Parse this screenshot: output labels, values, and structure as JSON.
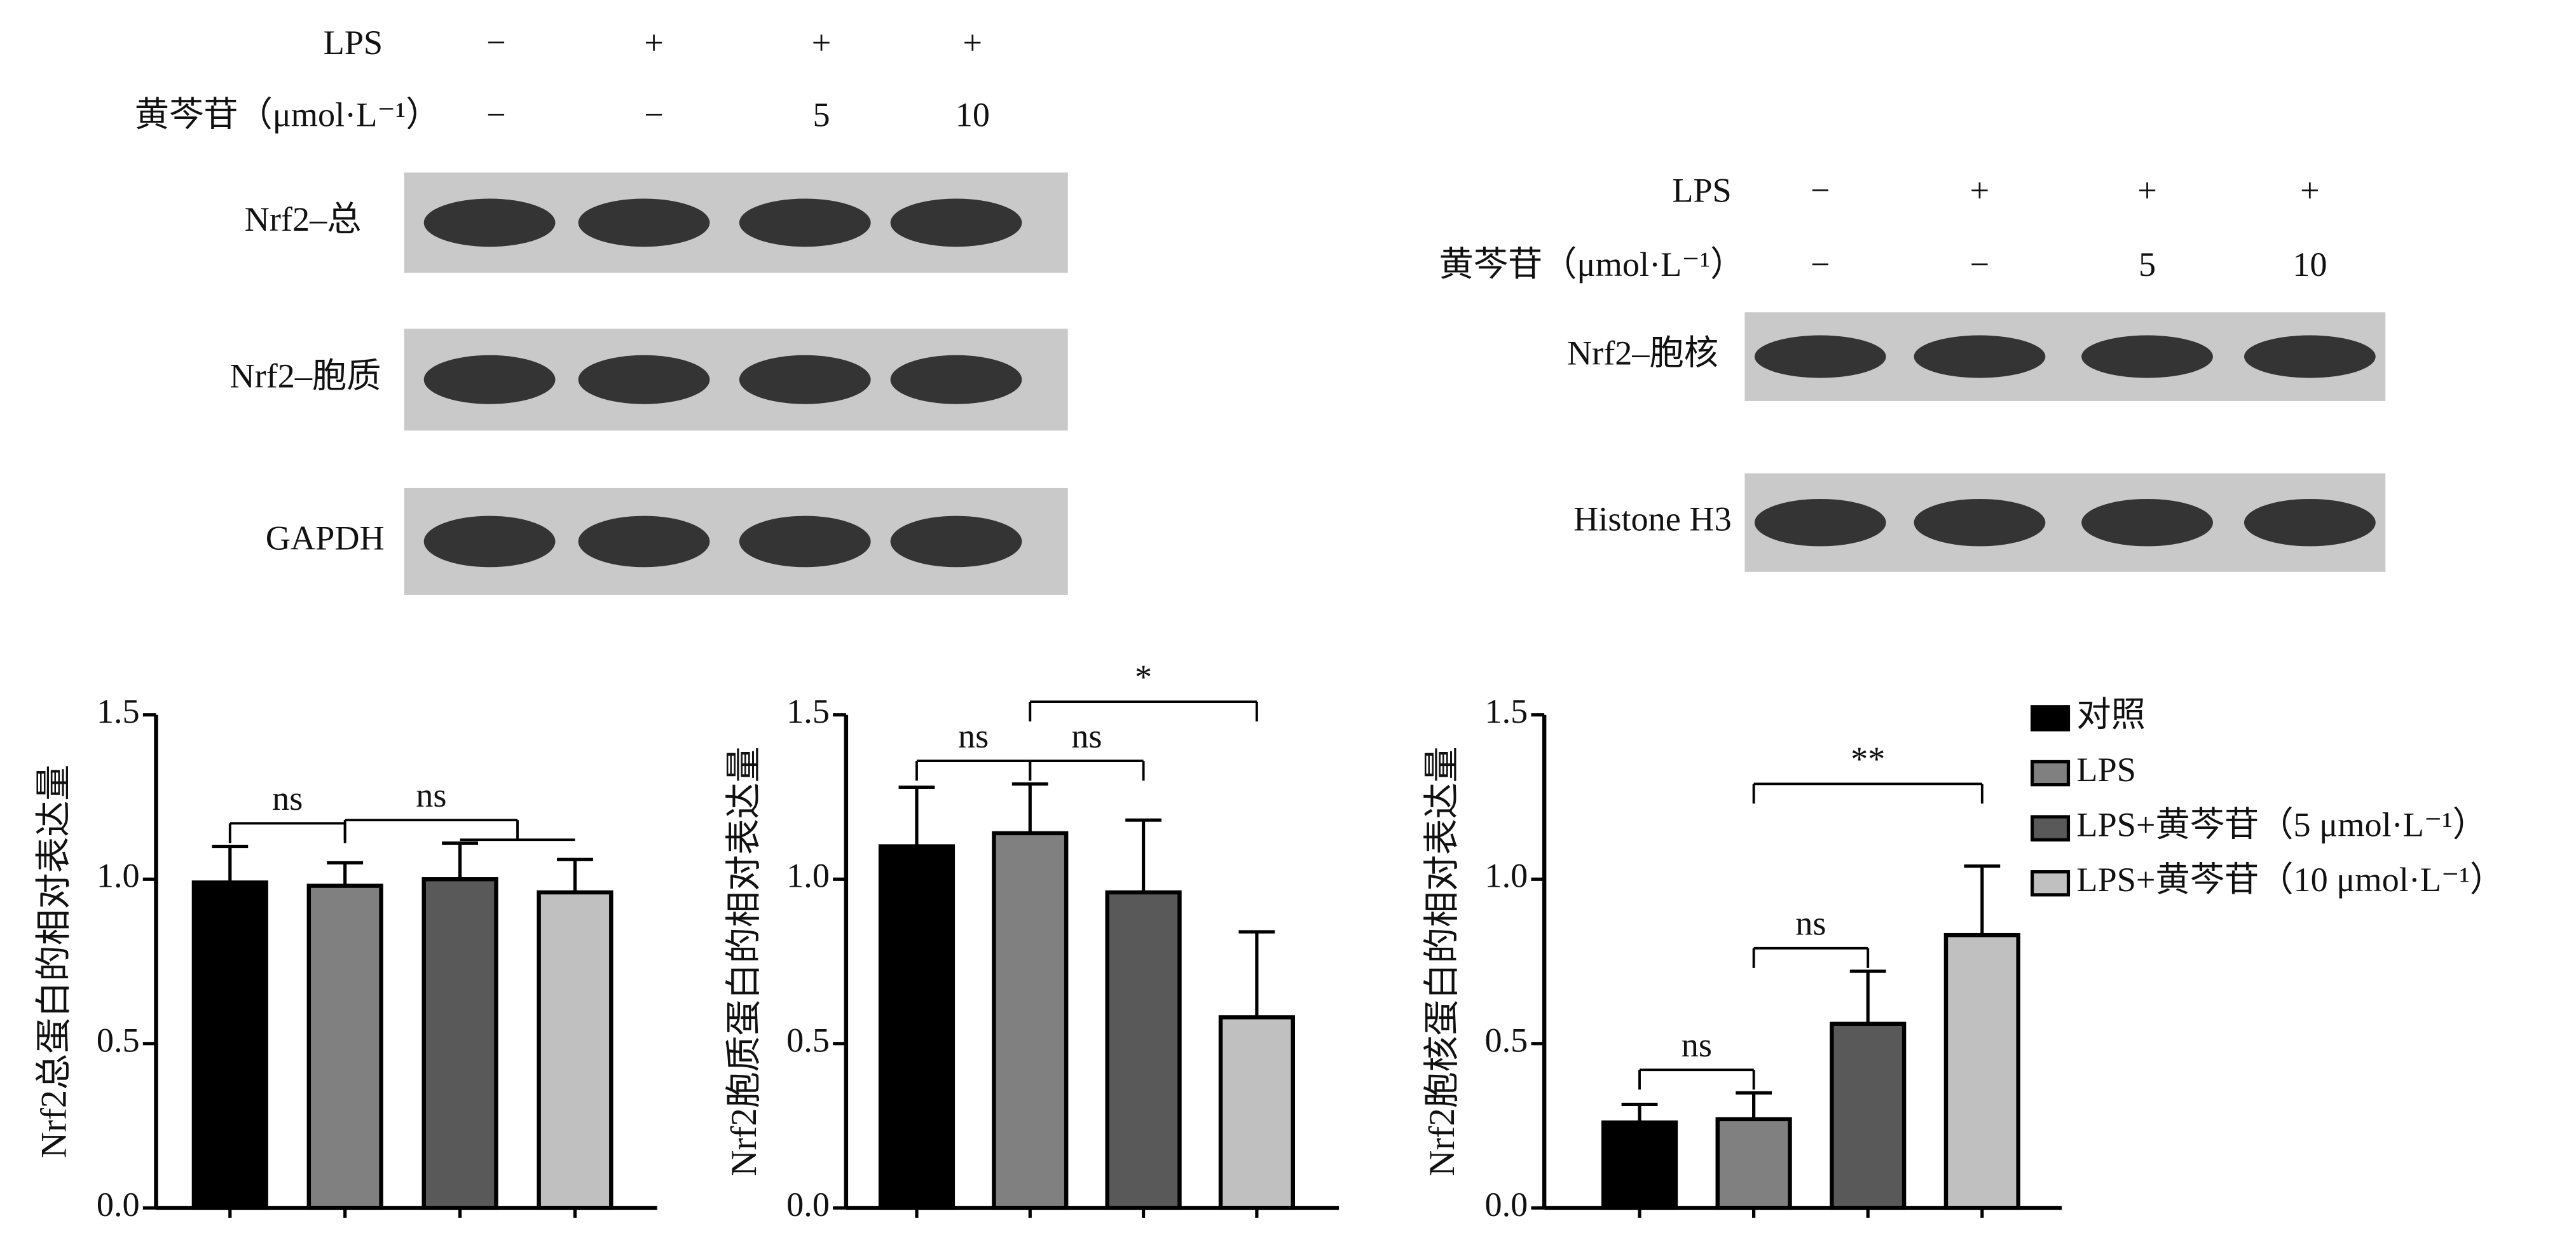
{
  "blots": [
    {
      "rows": [
        {
          "label": "LPS",
          "lanes": [
            "−",
            "+",
            "+",
            "+"
          ]
        },
        {
          "label": "黄芩苷（μmol·L⁻¹）",
          "lanes": [
            "−",
            "−",
            "5",
            "10"
          ]
        }
      ],
      "bands": [
        "Nrf2–总",
        "Nrf2–胞质",
        "GAPDH"
      ]
    },
    {
      "rows": [
        {
          "label": "LPS",
          "lanes": [
            "−",
            "+",
            "+",
            "+"
          ]
        },
        {
          "label": "黄芩苷（μmol·L⁻¹）",
          "lanes": [
            "−",
            "−",
            "5",
            "10"
          ]
        }
      ],
      "bands": [
        "Nrf2–胞核",
        "Histone H3"
      ]
    }
  ],
  "chart_data": [
    {
      "type": "bar",
      "y_label": "Nrf2总蛋白的相对表达量",
      "categories": [
        null,
        null,
        null,
        null
      ],
      "values": [
        0.99,
        0.98,
        1.0,
        0.96
      ],
      "errors": [
        0.11,
        0.07,
        0.11,
        0.1
      ],
      "colors": [
        "#000000",
        "#808080",
        "#595959",
        "#c0c0c0"
      ],
      "ylim": [
        0,
        1.5
      ],
      "yticks": [
        {
          "value": 0,
          "label": "0.0"
        },
        {
          "value": 0.5,
          "label": "0.5"
        },
        {
          "value": 1,
          "label": "1.0"
        },
        {
          "value": 1.5,
          "label": "1.5"
        }
      ],
      "annotations": [
        {
          "text": "ns",
          "between": [
            0,
            1
          ]
        },
        {
          "text": "ns",
          "between": [
            1,
            2,
            3
          ]
        }
      ]
    },
    {
      "type": "bar",
      "y_label": "Nrf2胞质蛋白的相对表达量",
      "categories": [
        null,
        null,
        null,
        null
      ],
      "values": [
        1.1,
        1.14,
        0.96,
        0.58
      ],
      "errors": [
        0.18,
        0.15,
        0.22,
        0.26
      ],
      "colors": [
        "#000000",
        "#808080",
        "#595959",
        "#c0c0c0"
      ],
      "ylim": [
        0,
        1.5
      ],
      "yticks": [
        {
          "value": 0,
          "label": "0.0"
        },
        {
          "value": 0.5,
          "label": "0.5"
        },
        {
          "value": 1,
          "label": "1.0"
        },
        {
          "value": 1.5,
          "label": "1.5"
        }
      ],
      "annotations": [
        {
          "text": "ns",
          "between": [
            0,
            1
          ]
        },
        {
          "text": "ns",
          "between": [
            1,
            2
          ]
        },
        {
          "text": "*",
          "between": [
            1,
            3
          ]
        }
      ]
    },
    {
      "type": "bar",
      "y_label": "Nrf2胞核蛋白的相对表达量",
      "categories": [
        null,
        null,
        null,
        null
      ],
      "values": [
        0.26,
        0.27,
        0.56,
        0.83
      ],
      "errors": [
        0.055,
        0.08,
        0.16,
        0.21
      ],
      "colors": [
        "#000000",
        "#808080",
        "#595959",
        "#c0c0c0"
      ],
      "ylim": [
        0,
        1.5
      ],
      "yticks": [
        {
          "value": 0,
          "label": "0.0"
        },
        {
          "value": 0.5,
          "label": "0.5"
        },
        {
          "value": 1,
          "label": "1.0"
        },
        {
          "value": 1.5,
          "label": "1.5"
        }
      ],
      "annotations": [
        {
          "text": "ns",
          "between": [
            0,
            1
          ]
        },
        {
          "text": "ns",
          "between": [
            1,
            2
          ]
        },
        {
          "text": "**",
          "between": [
            1,
            3
          ]
        }
      ],
      "legend": [
        "对照",
        "LPS",
        "LPS+黄芩苷（5 μmol·L⁻¹）",
        "LPS+黄芩苷（10 μmol·L⁻¹）"
      ]
    }
  ]
}
